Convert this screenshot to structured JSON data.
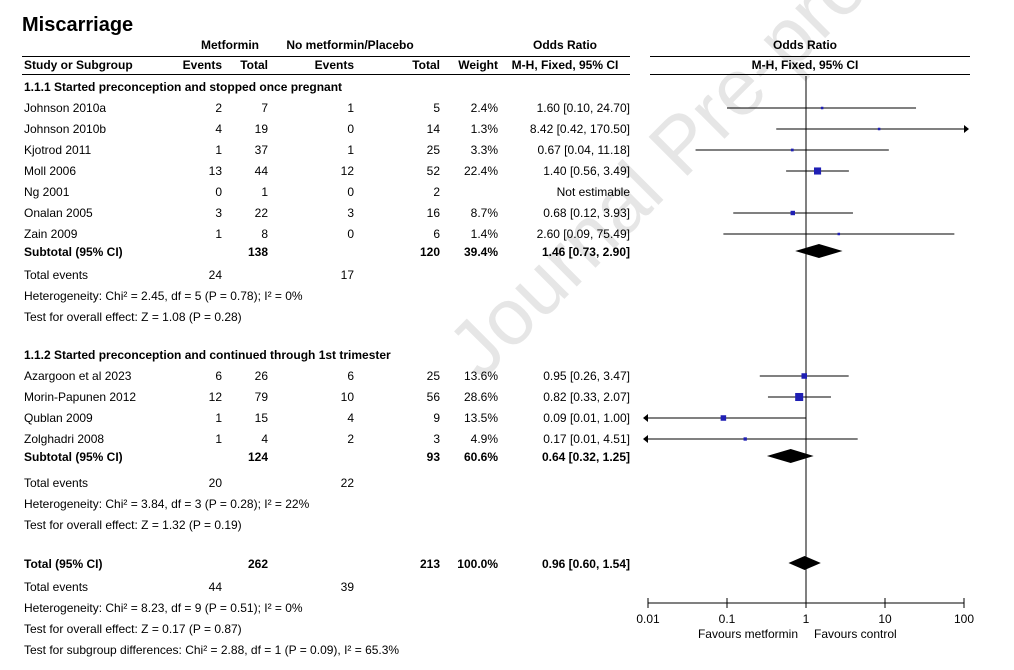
{
  "title": "Miscarriage",
  "watermark": "Journal Pre-proof",
  "header": {
    "group1": "Metformin",
    "group2": "No metformin/Placebo",
    "or_label": "Odds Ratio",
    "or_method": "M-H, Fixed, 95% CI",
    "plot_label": "Odds Ratio",
    "plot_method": "M-H, Fixed, 95% CI",
    "col_study": "Study or Subgroup",
    "col_events": "Events",
    "col_total": "Total",
    "col_weight": "Weight"
  },
  "rows": [
    {
      "kind": "subgroup",
      "label": "1.1.1 Started preconception and stopped once pregnant"
    },
    {
      "kind": "study",
      "label": "Johnson 2010a",
      "e1": "2",
      "t1": "7",
      "e2": "1",
      "t2": "5",
      "w": "2.4%",
      "ci": "1.60 [0.10, 24.70]"
    },
    {
      "kind": "study",
      "label": "Johnson 2010b",
      "e1": "4",
      "t1": "19",
      "e2": "0",
      "t2": "14",
      "w": "1.3%",
      "ci": "8.42 [0.42, 170.50]"
    },
    {
      "kind": "study",
      "label": "Kjotrod 2011",
      "e1": "1",
      "t1": "37",
      "e2": "1",
      "t2": "25",
      "w": "3.3%",
      "ci": "0.67 [0.04, 11.18]"
    },
    {
      "kind": "study",
      "label": "Moll 2006",
      "e1": "13",
      "t1": "44",
      "e2": "12",
      "t2": "52",
      "w": "22.4%",
      "ci": "1.40 [0.56, 3.49]"
    },
    {
      "kind": "study",
      "label": "Ng 2001",
      "e1": "0",
      "t1": "1",
      "e2": "0",
      "t2": "2",
      "w": "",
      "ci": "Not estimable"
    },
    {
      "kind": "study",
      "label": "Onalan 2005",
      "e1": "3",
      "t1": "22",
      "e2": "3",
      "t2": "16",
      "w": "8.7%",
      "ci": "0.68 [0.12, 3.93]"
    },
    {
      "kind": "study",
      "label": "Zain 2009",
      "e1": "1",
      "t1": "8",
      "e2": "0",
      "t2": "6",
      "w": "1.4%",
      "ci": "2.60 [0.09, 75.49]"
    },
    {
      "kind": "subtotal",
      "label": "Subtotal (95% CI)",
      "e1": "",
      "t1": "138",
      "e2": "",
      "t2": "120",
      "w": "39.4%",
      "ci": "1.46 [0.73, 2.90]"
    },
    {
      "kind": "events",
      "label": "Total events",
      "e1": "24",
      "e2": "17"
    },
    {
      "kind": "note",
      "label": "Heterogeneity: Chi² = 2.45, df = 5 (P = 0.78); I² = 0%"
    },
    {
      "kind": "note",
      "label": "Test for overall effect: Z = 1.08 (P = 0.28)"
    },
    {
      "kind": "subgroup",
      "label": "1.1.2 Started preconception and continued through 1st trimester"
    },
    {
      "kind": "study",
      "label": "Azargoon et al 2023",
      "e1": "6",
      "t1": "26",
      "e2": "6",
      "t2": "25",
      "w": "13.6%",
      "ci": "0.95 [0.26, 3.47]"
    },
    {
      "kind": "study",
      "label": "Morin-Papunen 2012",
      "e1": "12",
      "t1": "79",
      "e2": "10",
      "t2": "56",
      "w": "28.6%",
      "ci": "0.82 [0.33, 2.07]"
    },
    {
      "kind": "study",
      "label": "Qublan 2009",
      "e1": "1",
      "t1": "15",
      "e2": "4",
      "t2": "9",
      "w": "13.5%",
      "ci": "0.09 [0.01, 1.00]"
    },
    {
      "kind": "study",
      "label": "Zolghadri 2008",
      "e1": "1",
      "t1": "4",
      "e2": "2",
      "t2": "3",
      "w": "4.9%",
      "ci": "0.17 [0.01, 4.51]"
    },
    {
      "kind": "subtotal",
      "label": "Subtotal (95% CI)",
      "e1": "",
      "t1": "124",
      "e2": "",
      "t2": "93",
      "w": "60.6%",
      "ci": "0.64 [0.32, 1.25]"
    },
    {
      "kind": "events",
      "label": "Total events",
      "e1": "20",
      "e2": "22"
    },
    {
      "kind": "note",
      "label": "Heterogeneity: Chi² = 3.84, df = 3 (P = 0.28); I² = 22%"
    },
    {
      "kind": "note",
      "label": "Test for overall effect: Z = 1.32 (P = 0.19)"
    },
    {
      "kind": "subtotal",
      "label": "Total (95% CI)",
      "e1": "",
      "t1": "262",
      "e2": "",
      "t2": "213",
      "w": "100.0%",
      "ci": "0.96 [0.60, 1.54]"
    },
    {
      "kind": "events",
      "label": "Total events",
      "e1": "44",
      "e2": "39"
    },
    {
      "kind": "note",
      "label": "Heterogeneity: Chi² = 8.23, df = 9 (P = 0.51); I² = 0%"
    },
    {
      "kind": "note",
      "label": "Test for overall effect: Z = 0.17 (P = 0.87)"
    },
    {
      "kind": "note",
      "label": "Test for subgroup differences: Chi² = 2.88, df = 1 (P = 0.09), I² = 65.3%"
    }
  ],
  "chart_data": {
    "type": "forest",
    "scale": "log",
    "xlim": [
      0.01,
      100
    ],
    "ticks": [
      0.01,
      0.1,
      1,
      10,
      100
    ],
    "tick_labels": [
      "0.01",
      "0.1",
      "1",
      "10",
      "100"
    ],
    "favours_left": "Favours metformin",
    "favours_right": "Favours control",
    "marker_color": "#1f1fb4",
    "studies": [
      {
        "label": "Johnson 2010a",
        "or": 1.6,
        "lo": 0.1,
        "hi": 24.7,
        "weight": 2.4
      },
      {
        "label": "Johnson 2010b",
        "or": 8.42,
        "lo": 0.42,
        "hi": 170.5,
        "weight": 1.3
      },
      {
        "label": "Kjotrod 2011",
        "or": 0.67,
        "lo": 0.04,
        "hi": 11.18,
        "weight": 3.3
      },
      {
        "label": "Moll 2006",
        "or": 1.4,
        "lo": 0.56,
        "hi": 3.49,
        "weight": 22.4
      },
      {
        "label": "Onalan 2005",
        "or": 0.68,
        "lo": 0.12,
        "hi": 3.93,
        "weight": 8.7
      },
      {
        "label": "Zain 2009",
        "or": 2.6,
        "lo": 0.09,
        "hi": 75.49,
        "weight": 1.4
      },
      {
        "label": "Azargoon et al 2023",
        "or": 0.95,
        "lo": 0.26,
        "hi": 3.47,
        "weight": 13.6
      },
      {
        "label": "Morin-Papunen 2012",
        "or": 0.82,
        "lo": 0.33,
        "hi": 2.07,
        "weight": 28.6
      },
      {
        "label": "Qublan 2009",
        "or": 0.09,
        "lo": 0.01,
        "hi": 1.0,
        "weight": 13.5
      },
      {
        "label": "Zolghadri 2008",
        "or": 0.17,
        "lo": 0.01,
        "hi": 4.51,
        "weight": 4.9
      }
    ],
    "summaries": [
      {
        "label": "Subtotal 1.1.1",
        "or": 1.46,
        "lo": 0.73,
        "hi": 2.9
      },
      {
        "label": "Subtotal 1.1.2",
        "or": 0.64,
        "lo": 0.32,
        "hi": 1.25
      },
      {
        "label": "Total",
        "or": 0.96,
        "lo": 0.6,
        "hi": 1.54
      }
    ]
  }
}
